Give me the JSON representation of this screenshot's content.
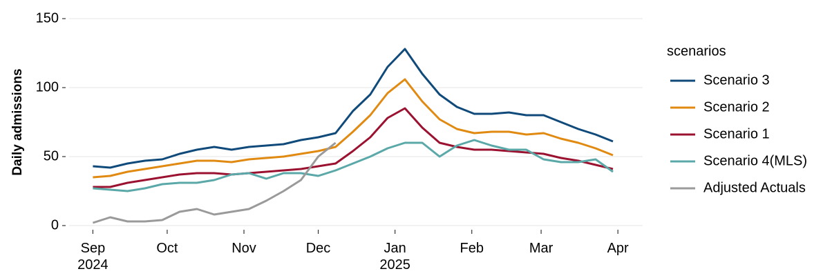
{
  "chart_data": {
    "type": "line",
    "y_label": "Daily admissions",
    "legend_title": "scenarios",
    "legend": "right",
    "grid": true,
    "x": [
      0,
      7,
      14,
      21,
      28,
      35,
      42,
      49,
      56,
      63,
      70,
      77,
      84,
      91,
      98,
      105,
      112,
      119,
      126,
      133,
      140,
      147,
      154,
      161,
      168,
      175,
      182,
      189,
      196,
      203,
      210
    ],
    "xlim": [
      -11,
      222
    ],
    "xticks": [
      {
        "value": 0,
        "label": "Sep\n2024"
      },
      {
        "value": 30,
        "label": "Oct"
      },
      {
        "value": 61,
        "label": "Nov"
      },
      {
        "value": 91,
        "label": "Dec"
      },
      {
        "value": 122,
        "label": "Jan\n2025"
      },
      {
        "value": 153,
        "label": "Feb"
      },
      {
        "value": 181,
        "label": "Mar"
      },
      {
        "value": 212,
        "label": "Apr"
      }
    ],
    "ylim": [
      -3,
      153
    ],
    "yticks": [
      0,
      50,
      100,
      150
    ],
    "series": [
      {
        "name": "Scenario 3",
        "color": "#0f4a7a",
        "values": [
          43,
          42,
          45,
          47,
          48,
          52,
          55,
          57,
          55,
          57,
          58,
          59,
          62,
          64,
          67,
          83,
          95,
          115,
          128,
          110,
          95,
          86,
          81,
          81,
          82,
          80,
          80,
          75,
          70,
          66,
          61
        ]
      },
      {
        "name": "Scenario 2",
        "color": "#e08a12",
        "values": [
          35,
          36,
          39,
          41,
          43,
          45,
          47,
          47,
          46,
          48,
          49,
          50,
          52,
          54,
          57,
          68,
          80,
          96,
          106,
          90,
          77,
          70,
          67,
          68,
          68,
          66,
          67,
          63,
          60,
          56,
          51
        ]
      },
      {
        "name": "Scenario 1",
        "color": "#9b1230",
        "values": [
          28,
          28,
          31,
          33,
          35,
          37,
          38,
          38,
          37,
          38,
          39,
          40,
          41,
          43,
          45,
          54,
          64,
          78,
          85,
          71,
          60,
          57,
          55,
          55,
          54,
          53,
          52,
          49,
          47,
          44,
          41
        ]
      },
      {
        "name": "Scenario 4(MLS)",
        "color": "#5aa8a8",
        "values": [
          27,
          26,
          25,
          27,
          30,
          31,
          31,
          33,
          37,
          38,
          34,
          38,
          38,
          36,
          40,
          45,
          50,
          56,
          60,
          60,
          50,
          58,
          62,
          58,
          55,
          55,
          48,
          46,
          46,
          48,
          39
        ]
      },
      {
        "name": "Adjusted Actuals",
        "color": "#9a9a9a",
        "values": [
          2,
          6,
          3,
          3,
          4,
          10,
          12,
          8,
          10,
          12,
          18,
          25,
          33,
          50,
          60,
          null,
          null,
          null,
          null,
          null,
          null,
          null,
          null,
          null,
          null,
          null,
          null,
          null,
          null,
          null,
          null
        ]
      }
    ]
  }
}
